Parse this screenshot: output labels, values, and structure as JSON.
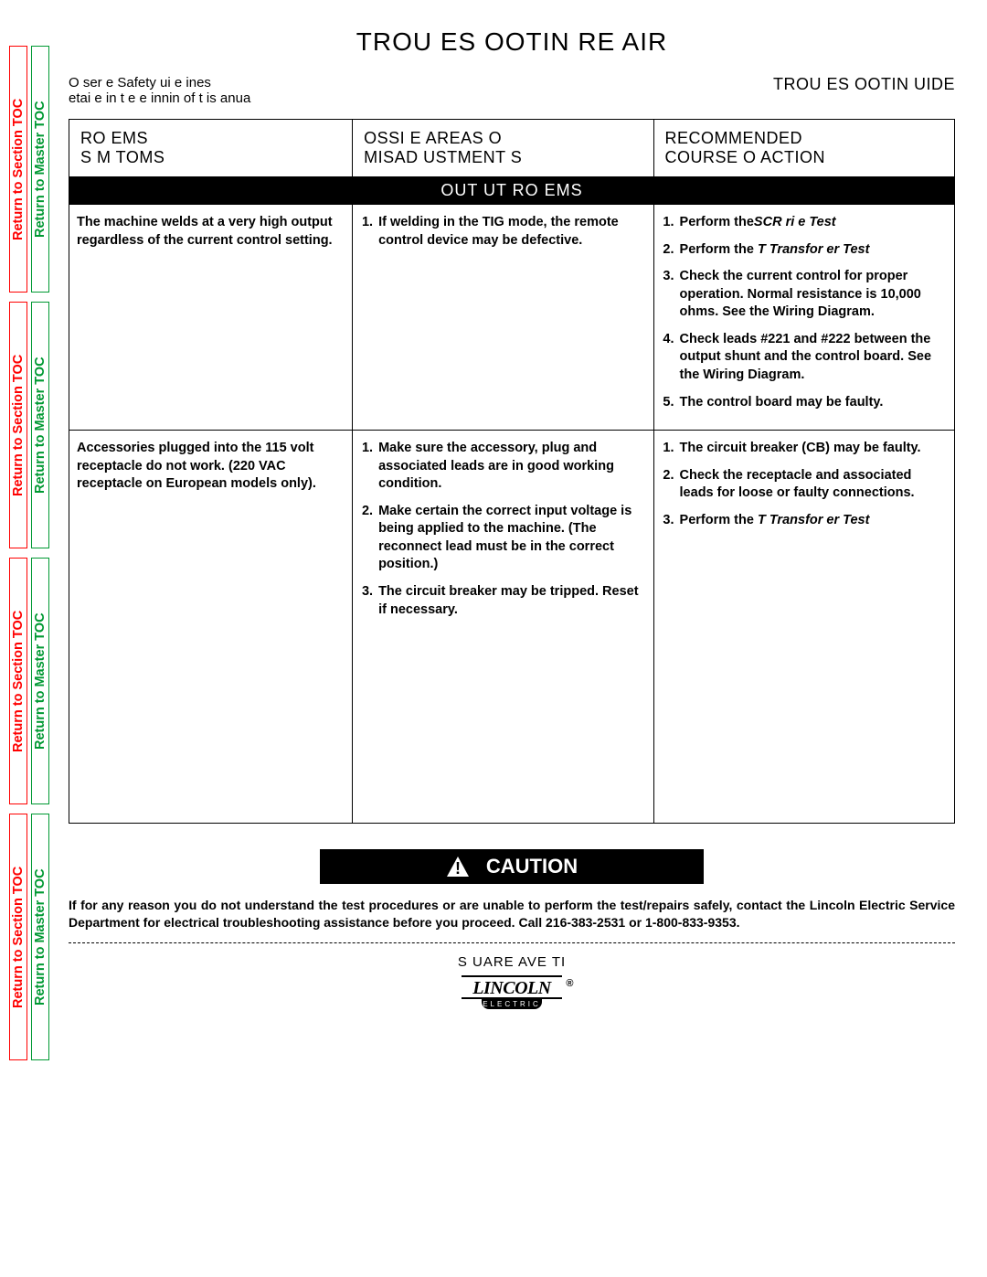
{
  "sideTabs": {
    "section": "Return to Section TOC",
    "master": "Return to Master TOC",
    "tabHeight": 270,
    "colors": {
      "section": "#ff0000",
      "master": "#009933"
    }
  },
  "title": "TROU   ES  OOTIN     RE  AIR",
  "subheadLeft": "O  ser e Safety  ui e ines\n etai e   in t e   e innin   of t is   anua",
  "subheadRight": "TROU   ES  OOTIN    UIDE",
  "columns": [
    " RO    EMS\nS  M  TOMS",
    " OSSI    E  AREAS O \nMISAD  USTMENT S ",
    "RECOMMENDED\nCOURSE O   ACTION"
  ],
  "sectionBanner": "OUT  UT   RO    EMS",
  "rows": [
    {
      "problem": "The machine welds at a very high output regardless of the current control setting.",
      "causes": [
        "If welding in the TIG mode, the remote control device may be defective."
      ],
      "actions": [
        {
          "pre": "Perform the",
          "ital": "SCR   ri   e Test"
        },
        {
          "pre": "Perform the ",
          "ital": "T   Transfor  er Test"
        },
        {
          "text": "Check the current control for proper operation.  Normal resistance is 10,000 ohms.  See the Wiring Diagram."
        },
        {
          "text": "Check leads #221 and #222 between the output shunt and the control board.  See the Wiring Diagram."
        },
        {
          "text": "The control board may be faulty."
        }
      ]
    },
    {
      "problem": "Accessories plugged into the 115 volt receptacle do not work.  (220 VAC receptacle on European models only).",
      "causes": [
        "Make sure the accessory, plug and associated leads are in good working condition.",
        "Make certain the correct input voltage is being applied to the machine.  (The reconnect lead must be in the correct position.)",
        "The circuit breaker may be tripped.  Reset if necessary."
      ],
      "actions": [
        {
          "text": "The circuit breaker (CB) may be faulty."
        },
        {
          "text": "Check the receptacle and associated leads for loose or faulty connections."
        },
        {
          "pre": "Perform the ",
          "ital": "T   Transfor  er Test"
        }
      ]
    }
  ],
  "cautionLabel": "CAUTION",
  "cautionText": "If for any reason you do not understand the test procedures or are unable to perform the test/repairs safely, contact the Lincoln Electric Service Department for electrical troubleshooting assistance before you proceed.  Call 216-383-2531 or 1-800-833-9353.",
  "footerModel": "S  UARE   AVE TI",
  "logo": {
    "top": "LINCOLN",
    "bottom": "ELECTRIC",
    "reg": "®"
  },
  "colWidths": [
    "32%",
    "34%",
    "34%"
  ]
}
